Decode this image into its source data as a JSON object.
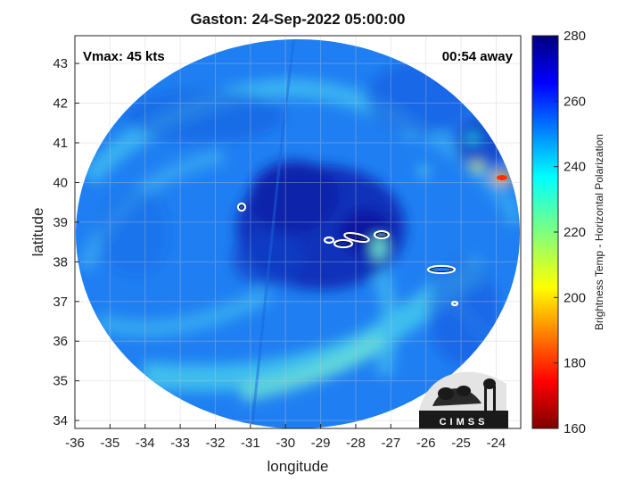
{
  "title": "Gaston: 24-Sep-2022 05:00:00",
  "vmax_label": "Vmax: 45 kts",
  "time_label": "00:54 away",
  "x_axis": {
    "label": "longitude",
    "range": [
      -36,
      -23.3
    ],
    "ticks": [
      -36,
      -35,
      -34,
      -33,
      -32,
      -31,
      -30,
      -29,
      -28,
      -27,
      -26,
      -25,
      -24
    ]
  },
  "y_axis": {
    "label": "latitude",
    "range": [
      33.8,
      43.7
    ],
    "ticks": [
      34,
      35,
      36,
      37,
      38,
      39,
      40,
      41,
      42,
      43
    ]
  },
  "colorbar": {
    "label": "Brightness Temp - Horizontal Polarization",
    "range": [
      160,
      280
    ],
    "ticks": [
      160,
      180,
      200,
      220,
      240,
      260,
      280
    ]
  },
  "logo": {
    "text": "CIMSS"
  },
  "colors": {
    "background_scan": "#1e78f0",
    "dark_core": "#0a28b4",
    "cyan_band": "#3cc8f0"
  }
}
